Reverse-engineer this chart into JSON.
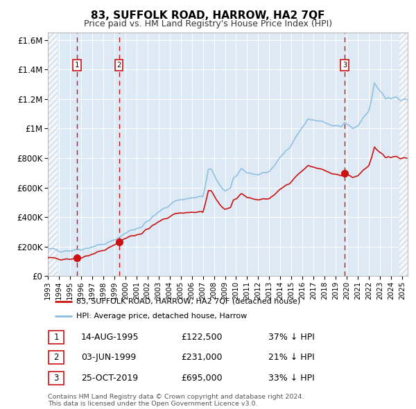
{
  "title": "83, SUFFOLK ROAD, HARROW, HA2 7QF",
  "subtitle": "Price paid vs. HM Land Registry's House Price Index (HPI)",
  "ylim": [
    0,
    1650000
  ],
  "xlim_start": 1993.0,
  "xlim_end": 2025.5,
  "yticks": [
    0,
    200000,
    400000,
    600000,
    800000,
    1000000,
    1200000,
    1400000,
    1600000
  ],
  "ytick_labels": [
    "£0",
    "£200K",
    "£400K",
    "£600K",
    "£800K",
    "£1M",
    "£1.2M",
    "£1.4M",
    "£1.6M"
  ],
  "background_color": "#ffffff",
  "plot_bg_color": "#ddeaf5",
  "grid_color": "#ffffff",
  "hatch_color": "#b8c8d8",
  "sale_color": "#cc1111",
  "hpi_color": "#88bbdd",
  "legend_entries": [
    "83, SUFFOLK ROAD, HARROW, HA2 7QF (detached house)",
    "HPI: Average price, detached house, Harrow"
  ],
  "transactions": [
    {
      "num": 1,
      "date": "14-AUG-1995",
      "price": 122500,
      "pct": "37%",
      "dir": "↓"
    },
    {
      "num": 2,
      "date": "03-JUN-1999",
      "price": 231000,
      "pct": "21%",
      "dir": "↓"
    },
    {
      "num": 3,
      "date": "25-OCT-2019",
      "price": 695000,
      "pct": "33%",
      "dir": "↓"
    }
  ],
  "transaction_years": [
    1995.62,
    1999.42,
    2019.81
  ],
  "transaction_prices": [
    122500,
    231000,
    695000
  ],
  "footer": "Contains HM Land Registry data © Crown copyright and database right 2024.\nThis data is licensed under the Open Government Licence v3.0.",
  "hatch_left_end": 1993.9,
  "hatch_right_start": 2024.75
}
